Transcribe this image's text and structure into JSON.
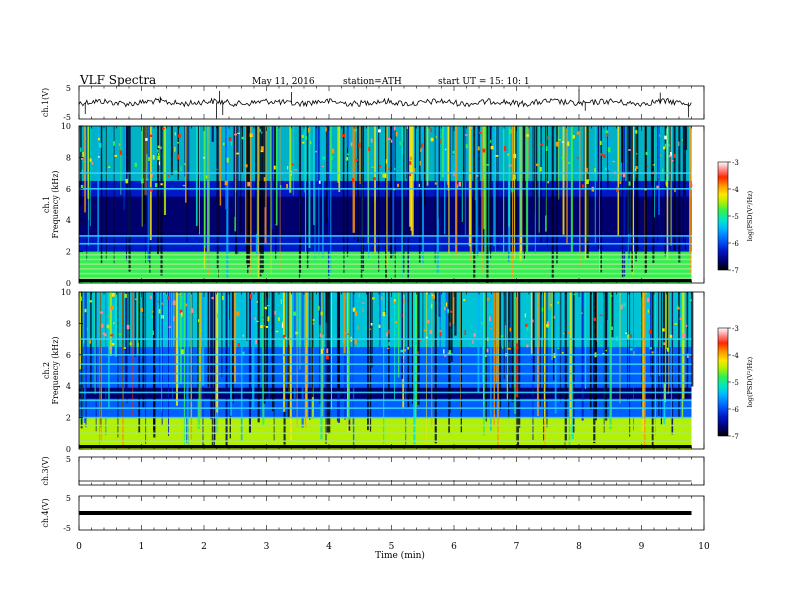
{
  "header": {
    "title": "VLF  Spectra",
    "date": "May 11, 2016",
    "station": "station=ATH",
    "start": "start  UT  =    15: 10: 1"
  },
  "colors": {
    "spectrogram_palette": [
      "#000000",
      "#00006e",
      "#0018c8",
      "#0060ff",
      "#00b4ff",
      "#00e6c8",
      "#32f050",
      "#b4f000",
      "#ffe600",
      "#ff9600",
      "#ff2800",
      "#ff8c8c",
      "#ffffff"
    ]
  },
  "chart_data": [
    {
      "type": "line",
      "panel": "ch1-waveform",
      "ylabel": "ch.1(V)",
      "yticks": [
        "5",
        "-5"
      ],
      "ylim": [
        -5,
        5
      ],
      "xlim": [
        0,
        10
      ],
      "data_end_min": 9.8,
      "baseline": 0.0,
      "spikes": [
        {
          "x": 0.1,
          "y": -3.5
        },
        {
          "x": 1.3,
          "y": 1.8
        },
        {
          "x": 2.2,
          "y": -4.5
        },
        {
          "x": 2.25,
          "y": 3.5
        },
        {
          "x": 2.3,
          "y": -3.8
        },
        {
          "x": 3.4,
          "y": 3.2
        },
        {
          "x": 8.0,
          "y": 4.0
        },
        {
          "x": 8.1,
          "y": -2.5
        },
        {
          "x": 9.3,
          "y": 3.0
        },
        {
          "x": 9.75,
          "y": -4.5
        }
      ]
    },
    {
      "type": "heatmap",
      "panel": "ch1-spectrogram",
      "ylabel_top": "ch.1",
      "ylabel": "Frequency (kHz)",
      "yticks": [
        "0",
        "2",
        "4",
        "6",
        "8",
        "10"
      ],
      "ylim": [
        0,
        10
      ],
      "xlim": [
        0,
        10
      ],
      "data_end_min": 9.8,
      "colorbar": {
        "label": "log(PSD(V²/Hz)",
        "ticks": [
          "-3",
          "-4",
          "-5",
          "-6",
          "-7"
        ],
        "range": [
          -7,
          -3
        ]
      },
      "tonal_lines_khz": [
        0.3,
        0.6,
        0.9,
        1.2,
        1.5,
        1.8,
        2.5,
        3.0,
        6.0,
        7.0
      ],
      "low_band_level": -5.0,
      "background_level": -6.3,
      "quiet_band_khz": [
        3.0,
        5.5
      ],
      "quiet_level": -6.6,
      "high_band_level": -5.3
    },
    {
      "type": "heatmap",
      "panel": "ch2-spectrogram",
      "ylabel_top": "ch.2",
      "ylabel": "Frequency (kHz)",
      "yticks": [
        "0",
        "2",
        "4",
        "6",
        "8",
        "10"
      ],
      "ylim": [
        0,
        10
      ],
      "xlim": [
        0,
        10
      ],
      "data_end_min": 9.8,
      "colorbar": {
        "label": "log(PSD(V²/Hz)",
        "ticks": [
          "-3",
          "-4",
          "-5",
          "-6",
          "-7"
        ],
        "range": [
          -7,
          -3
        ]
      },
      "tonal_lines_khz": [
        0.5,
        1.0,
        1.5,
        2.0,
        2.6,
        3.1,
        3.6,
        4.2,
        4.8,
        5.4,
        6.0,
        7.0
      ],
      "low_band_level": -4.8,
      "background_level": -6.0,
      "quiet_band_khz": [
        3.2,
        3.9
      ],
      "quiet_level": -6.8,
      "high_band_level": -5.2
    },
    {
      "type": "line",
      "panel": "ch3-waveform",
      "ylabel": "ch.3(V)",
      "yticks": [
        "5"
      ],
      "ylim": [
        -5,
        5
      ],
      "xlim": [
        0,
        10
      ],
      "data_end_min": 9.8,
      "baseline": 0.0,
      "spikes": []
    },
    {
      "type": "line",
      "panel": "ch4-waveform",
      "ylabel": "ch.4(V)",
      "yticks": [
        "5",
        "-5"
      ],
      "ylim": [
        -5,
        5
      ],
      "xlim": [
        0,
        10
      ],
      "data_end_min": 9.8,
      "baseline": 0.0,
      "spikes": []
    }
  ],
  "x_axis": {
    "label": "Time  (min)",
    "ticks": [
      "0",
      "1",
      "2",
      "3",
      "4",
      "5",
      "6",
      "7",
      "8",
      "9",
      "10"
    ]
  }
}
